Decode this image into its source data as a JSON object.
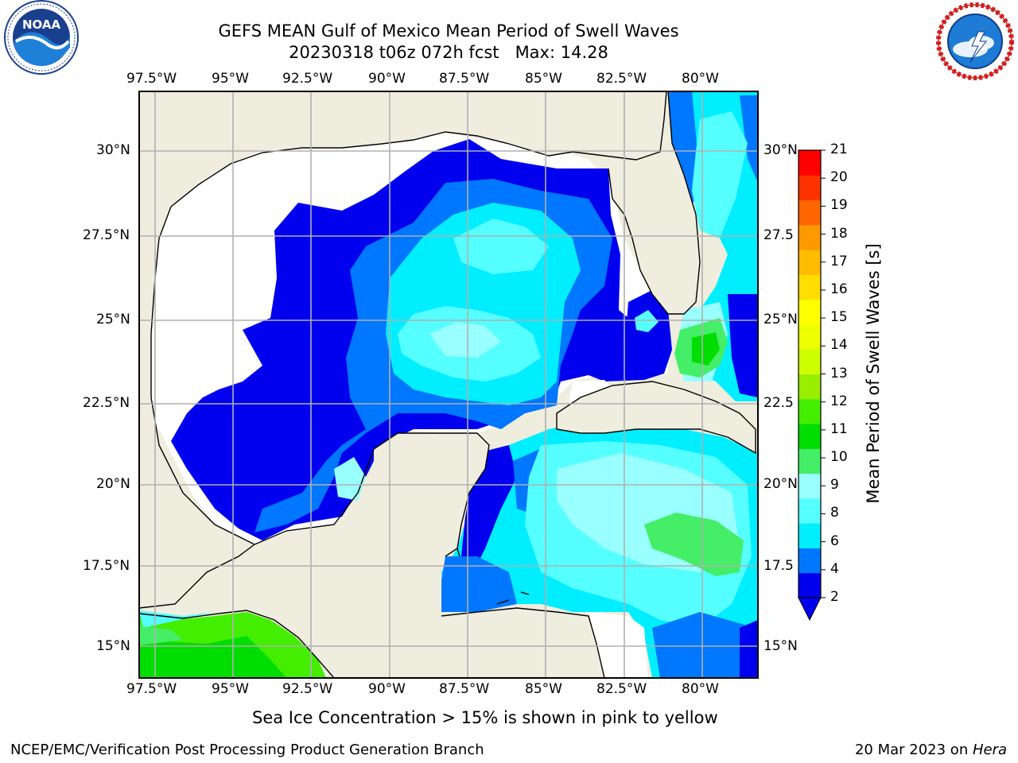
{
  "header": {
    "title_line1": "GEFS MEAN Gulf of Mexico Mean Period of Swell Waves",
    "title_line2": "20230318 t06z 072h fcst   Max: 14.28",
    "left_logo": {
      "name": "noaa-logo",
      "text": "NOAA",
      "ring_text": "NATIONAL OCEANIC AND ATMOSPHERIC ADMINISTRATION · U.S. DEPARTMENT OF COMMERCE",
      "colors": {
        "ring": "#ffffff",
        "outer": "#1b3f8f",
        "wave": "#1f80d8"
      }
    },
    "right_logo": {
      "name": "nws-logo",
      "ring_text": "NATIONAL WEATHER SERVICE",
      "colors": {
        "ring_text": "#d21c1c",
        "inner": "#1e7bd6"
      }
    }
  },
  "map": {
    "lon_labels": [
      "97.5°W",
      "95°W",
      "92.5°W",
      "90°W",
      "87.5°W",
      "85°W",
      "82.5°W",
      "80°W"
    ],
    "lat_labels_left": [
      "30°N",
      "27.5°N",
      "25°N",
      "22.5°N",
      "20°N",
      "17.5°N",
      "15°N"
    ],
    "lat_labels_right": [
      "30°N",
      "27.5",
      "25°N",
      "22.5",
      "20°N",
      "17.5",
      "15°N"
    ],
    "colors": {
      "land": "#efedde",
      "ocean_missing": "#ffffff",
      "grid": "#b0b0b0",
      "coast": "#000000"
    }
  },
  "colorbar": {
    "label": "Mean Period of Swell Waves [s]",
    "ticks": [
      "21",
      "20",
      "19",
      "18",
      "17",
      "16",
      "15",
      "14",
      "13",
      "12",
      "11",
      "10",
      "9",
      "8",
      "6",
      "4",
      "2"
    ],
    "colors_bottom_to_top": [
      "#0000ee",
      "#0077ff",
      "#00eeff",
      "#55ffff",
      "#99ffff",
      "#44ee66",
      "#00dd00",
      "#44ee00",
      "#99ee00",
      "#ccff00",
      "#eeff00",
      "#ffff00",
      "#ffdd00",
      "#ffbb00",
      "#ff9900",
      "#ff6600",
      "#ff3300",
      "#ff0000"
    ]
  },
  "footer": {
    "note": "Sea Ice Concentration > 15% is shown in pink to yellow",
    "credit": "NCEP/EMC/Verification Post Processing Product Generation Branch",
    "date": "20 Mar 2023 on ",
    "system": "Hera"
  }
}
